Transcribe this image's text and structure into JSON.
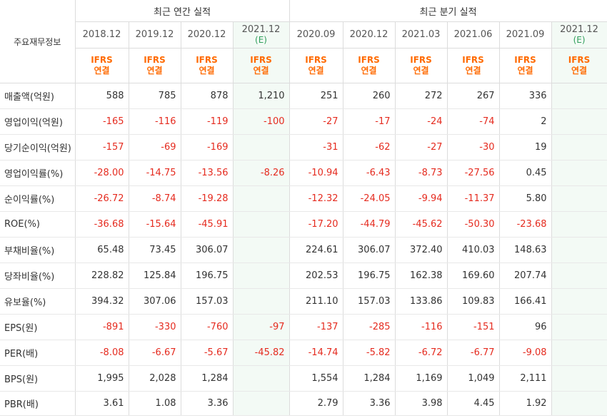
{
  "corner_label": "주요재무정보",
  "groups": {
    "annual": "최근 연간 실적",
    "quarterly": "최근 분기 실적"
  },
  "periods": [
    {
      "label": "2018.12",
      "sub": "",
      "est": false
    },
    {
      "label": "2019.12",
      "sub": "",
      "est": false
    },
    {
      "label": "2020.12",
      "sub": "",
      "est": false
    },
    {
      "label": "2021.12",
      "sub": "(E)",
      "est": true
    },
    {
      "label": "2020.09",
      "sub": "",
      "est": false
    },
    {
      "label": "2020.12",
      "sub": "",
      "est": false
    },
    {
      "label": "2021.03",
      "sub": "",
      "est": false
    },
    {
      "label": "2021.06",
      "sub": "",
      "est": false
    },
    {
      "label": "2021.09",
      "sub": "",
      "est": false
    },
    {
      "label": "2021.12",
      "sub": "(E)",
      "est": true
    }
  ],
  "ifrs": {
    "line1": "IFRS",
    "line2": "연결"
  },
  "colors": {
    "negative": "#e52b1f",
    "ifrs": "#ff6a00",
    "estimate_bg": "#f3faf5"
  },
  "rows": [
    {
      "label": "매출액(억원)",
      "values": [
        "588",
        "785",
        "878",
        "1,210",
        "251",
        "260",
        "272",
        "267",
        "336",
        ""
      ]
    },
    {
      "label": "영업이익(억원)",
      "values": [
        "-165",
        "-116",
        "-119",
        "-100",
        "-27",
        "-17",
        "-24",
        "-74",
        "2",
        ""
      ]
    },
    {
      "label": "당기순이익(억원)",
      "values": [
        "-157",
        "-69",
        "-169",
        "",
        "-31",
        "-62",
        "-27",
        "-30",
        "19",
        ""
      ]
    },
    {
      "label": "영업이익률(%)",
      "values": [
        "-28.00",
        "-14.75",
        "-13.56",
        "-8.26",
        "-10.94",
        "-6.43",
        "-8.73",
        "-27.56",
        "0.45",
        ""
      ]
    },
    {
      "label": "순이익률(%)",
      "values": [
        "-26.72",
        "-8.74",
        "-19.28",
        "",
        "-12.32",
        "-24.05",
        "-9.94",
        "-11.37",
        "5.80",
        ""
      ]
    },
    {
      "label": "ROE(%)",
      "values": [
        "-36.68",
        "-15.64",
        "-45.91",
        "",
        "-17.20",
        "-44.79",
        "-45.62",
        "-50.30",
        "-23.68",
        ""
      ]
    },
    {
      "label": "부채비율(%)",
      "values": [
        "65.48",
        "73.45",
        "306.07",
        "",
        "224.61",
        "306.07",
        "372.40",
        "410.03",
        "148.63",
        ""
      ]
    },
    {
      "label": "당좌비율(%)",
      "values": [
        "228.82",
        "125.84",
        "196.75",
        "",
        "202.53",
        "196.75",
        "162.38",
        "169.60",
        "207.74",
        ""
      ]
    },
    {
      "label": "유보율(%)",
      "values": [
        "394.32",
        "307.06",
        "157.03",
        "",
        "211.10",
        "157.03",
        "133.86",
        "109.83",
        "166.41",
        ""
      ]
    },
    {
      "label": "EPS(원)",
      "values": [
        "-891",
        "-330",
        "-760",
        "-97",
        "-137",
        "-285",
        "-116",
        "-151",
        "96",
        ""
      ]
    },
    {
      "label": "PER(배)",
      "values": [
        "-8.08",
        "-6.67",
        "-5.67",
        "-45.82",
        "-14.74",
        "-5.82",
        "-6.72",
        "-6.77",
        "-9.08",
        ""
      ]
    },
    {
      "label": "BPS(원)",
      "values": [
        "1,995",
        "2,028",
        "1,284",
        "",
        "1,554",
        "1,284",
        "1,169",
        "1,049",
        "2,111",
        ""
      ]
    },
    {
      "label": "PBR(배)",
      "values": [
        "3.61",
        "1.08",
        "3.36",
        "",
        "2.79",
        "3.36",
        "3.98",
        "4.45",
        "1.92",
        ""
      ]
    }
  ]
}
